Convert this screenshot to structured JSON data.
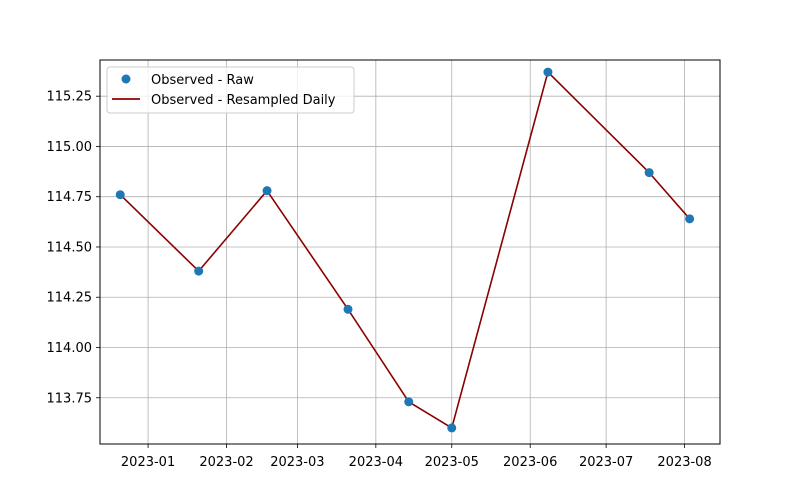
{
  "chart_data": {
    "type": "scatter",
    "title": "",
    "xlabel": "",
    "ylabel": "",
    "xlim": [
      "2022-12-13",
      "2023-08-15"
    ],
    "ylim": [
      113.52,
      115.43
    ],
    "grid": true,
    "legend_position": "top-left",
    "x_ticks": [
      "2023-01",
      "2023-02",
      "2023-03",
      "2023-04",
      "2023-05",
      "2023-06",
      "2023-07",
      "2023-08"
    ],
    "y_ticks": [
      "113.75",
      "114.00",
      "114.25",
      "114.50",
      "114.75",
      "115.00",
      "115.25"
    ],
    "series": [
      {
        "name": "Observed - Raw",
        "kind": "scatter",
        "color": "#1f77b4",
        "points": [
          {
            "x": "2022-12-21",
            "y": 114.76
          },
          {
            "x": "2023-01-21",
            "y": 114.38
          },
          {
            "x": "2023-02-17",
            "y": 114.78
          },
          {
            "x": "2023-03-21",
            "y": 114.19
          },
          {
            "x": "2023-04-14",
            "y": 113.73
          },
          {
            "x": "2023-05-01",
            "y": 113.6
          },
          {
            "x": "2023-06-08",
            "y": 115.37
          },
          {
            "x": "2023-07-18",
            "y": 114.87
          },
          {
            "x": "2023-08-03",
            "y": 114.64
          }
        ]
      },
      {
        "name": "Observed - Resampled Daily",
        "kind": "line",
        "color": "#8b0000",
        "points": [
          {
            "x": "2022-12-21",
            "y": 114.76
          },
          {
            "x": "2023-01-21",
            "y": 114.38
          },
          {
            "x": "2023-02-17",
            "y": 114.78
          },
          {
            "x": "2023-03-21",
            "y": 114.19
          },
          {
            "x": "2023-04-14",
            "y": 113.73
          },
          {
            "x": "2023-05-01",
            "y": 113.6
          },
          {
            "x": "2023-06-08",
            "y": 115.37
          },
          {
            "x": "2023-07-18",
            "y": 114.87
          },
          {
            "x": "2023-08-03",
            "y": 114.64
          }
        ]
      }
    ]
  }
}
